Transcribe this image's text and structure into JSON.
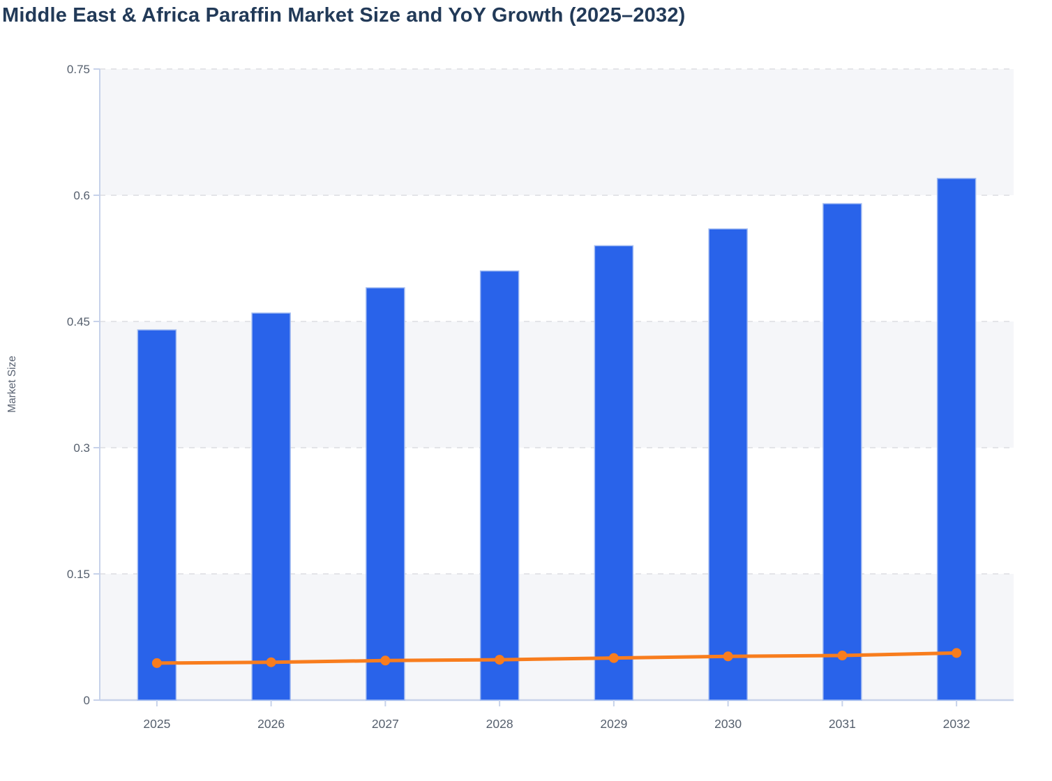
{
  "chart_data": {
    "type": "bar",
    "title": "Middle East & Africa Paraffin Market Size and YoY Growth (2025–2032)",
    "xlabel": "",
    "ylabel": "Market Size",
    "categories": [
      "2025",
      "2026",
      "2027",
      "2028",
      "2029",
      "2030",
      "2031",
      "2032"
    ],
    "series": [
      {
        "name": "Market Size",
        "type": "bar",
        "values": [
          0.44,
          0.46,
          0.49,
          0.51,
          0.54,
          0.56,
          0.59,
          0.62
        ]
      },
      {
        "name": "YoY Growth",
        "type": "line",
        "values": [
          0.044,
          0.045,
          0.047,
          0.048,
          0.05,
          0.052,
          0.053,
          0.056
        ]
      }
    ],
    "ylim": [
      0,
      0.75
    ],
    "yticks": [
      0,
      0.15,
      0.3,
      0.45,
      0.6,
      0.75
    ],
    "ytick_labels": [
      "0",
      "0.15",
      "0.3",
      "0.45",
      "0.6",
      "0.75"
    ],
    "grid": "dashed horizontal gridlines, alternating row bands",
    "legend": "none"
  },
  "colors": {
    "bar_fill": "#2963ea",
    "bar_border": "#9fb9f1",
    "line": "#f87d1e",
    "band": "#f5f6f9",
    "gridline": "#e3e4e8",
    "axis_line": "#c7d2ea",
    "axis_text": "#555f6d",
    "title_text": "#223a58",
    "background": "#ffffff"
  }
}
